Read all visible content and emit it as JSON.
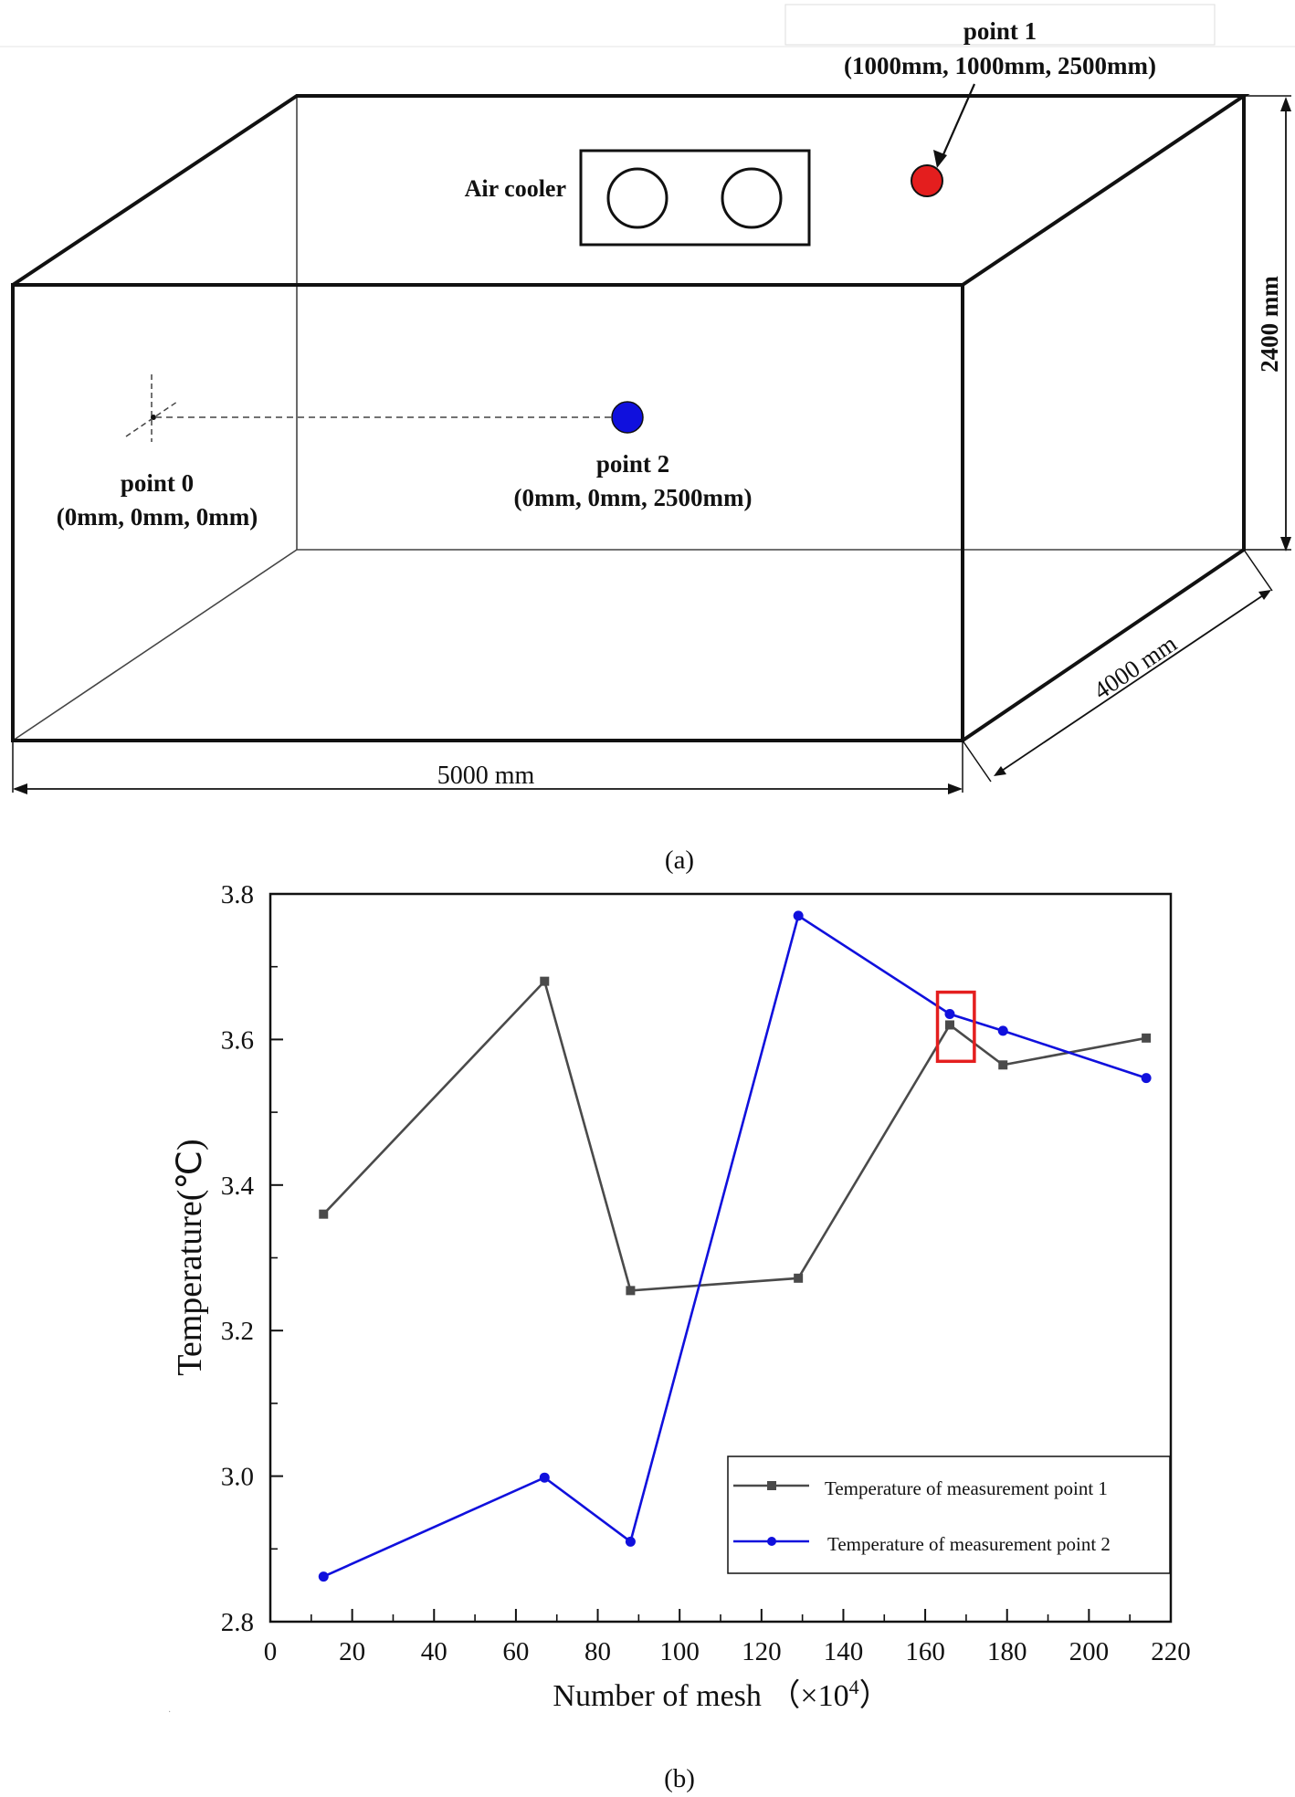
{
  "diagram": {
    "air_cooler_label": "Air cooler",
    "point1": {
      "name": "point 1",
      "coords": "(1000mm, 1000mm, 2500mm)",
      "color": "#e41e1e"
    },
    "point2": {
      "name": "point 2",
      "coords": "(0mm, 0mm, 2500mm)",
      "color": "#1010dd"
    },
    "point0": {
      "name": "point 0",
      "coords": "(0mm, 0mm, 0mm)"
    },
    "dim_height": "2400 mm",
    "dim_depth": "4000 mm",
    "dim_width": "5000 mm",
    "caption": "(a)"
  },
  "chart_caption": "(b)",
  "chart_data": {
    "type": "line",
    "title": "",
    "xlabel": "Number of mesh （×10",
    "xlabel_sup": "4",
    "xlabel_tail": "）",
    "ylabel": "Temperature(℃)",
    "xlim": [
      0,
      220
    ],
    "ylim": [
      2.8,
      3.8
    ],
    "x_ticks": [
      "0",
      "20",
      "40",
      "60",
      "80",
      "100",
      "120",
      "140",
      "160",
      "180",
      "200",
      "220"
    ],
    "y_ticks": [
      "2.8",
      "3.0",
      "3.2",
      "3.4",
      "3.6",
      "3.8"
    ],
    "legend_position": "bottom-right",
    "series": [
      {
        "name": "Temperature of measurement point 1",
        "color": "#4a4a4a",
        "marker": "square",
        "x": [
          13,
          67,
          88,
          129,
          166,
          179,
          214
        ],
        "y": [
          3.36,
          3.68,
          3.255,
          3.272,
          3.62,
          3.565,
          3.602
        ]
      },
      {
        "name": "Temperature of measurement point 2",
        "color": "#1010dd",
        "marker": "circle",
        "x": [
          13,
          67,
          88,
          129,
          166,
          179,
          214
        ],
        "y": [
          2.862,
          2.998,
          2.91,
          3.77,
          3.635,
          3.612,
          3.547
        ]
      }
    ],
    "highlight": {
      "x": [
        163,
        172
      ],
      "y": [
        3.57,
        3.665
      ],
      "color": "#e41e1e"
    }
  }
}
